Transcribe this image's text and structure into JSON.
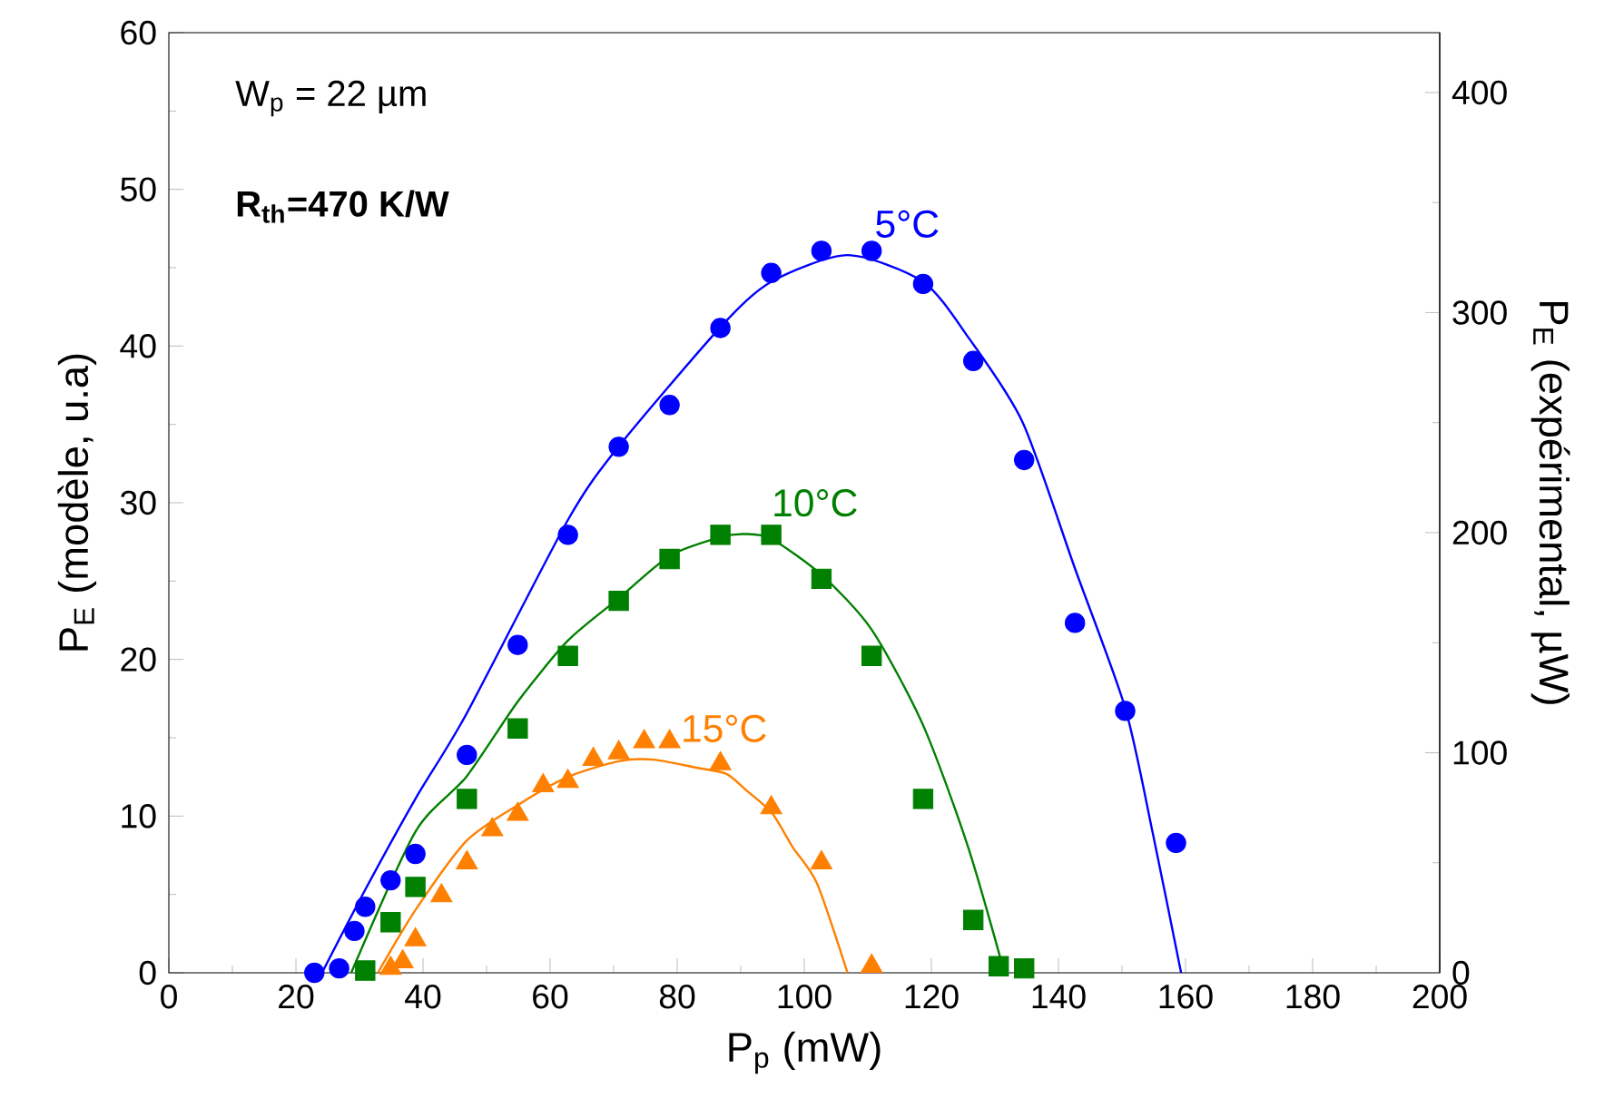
{
  "chart_data": {
    "type": "scatter",
    "xlabel": "P$_{p}$  (mW)",
    "ylabel": "P$_{E}$ (modèle, u.a)",
    "y2label": "P$_{E}$ (expérimental, µW)",
    "annotations": [
      "W$_{p}$ = 22 µm",
      "**R$_{th}$=470 K/W**"
    ],
    "xlim": [
      0,
      200
    ],
    "xticks": [
      0,
      20,
      40,
      60,
      80,
      100,
      120,
      140,
      160,
      180,
      200
    ],
    "ylim": [
      0,
      60
    ],
    "yticks": [
      0,
      10,
      20,
      30,
      40,
      50,
      60
    ],
    "y2lim": [
      0,
      427.2
    ],
    "y2ticks": [
      0,
      100,
      200,
      300,
      400
    ],
    "grid": false,
    "series": [
      {
        "name": "5°C",
        "type": "line",
        "color": "#0000ff",
        "marker": "none",
        "x": [
          24.1,
          30.9,
          38.8,
          46.8,
          62.8,
          70.6,
          86.8,
          94.8,
          106.8,
          118.7,
          125.9,
          134.4,
          142.6,
          150.5,
          154.9,
          159.3
        ],
        "values": [
          0,
          5.3,
          11.1,
          16.5,
          28.9,
          33.5,
          41.2,
          44.1,
          45.8,
          44.1,
          40.5,
          35.1,
          25.8,
          16.9,
          8.8,
          0
        ]
      },
      {
        "name": "10°C",
        "type": "line",
        "color": "#008000",
        "marker": "none",
        "x": [
          28.7,
          38.8,
          46.8,
          54.9,
          62.8,
          70.8,
          78.8,
          86.8,
          90.6,
          94.8,
          102.7,
          110.6,
          118.7,
          125.8,
          131.5
        ],
        "values": [
          0,
          9.0,
          12.5,
          17.3,
          21.2,
          23.9,
          26.6,
          27.8,
          28.0,
          27.7,
          25.4,
          21.9,
          15.8,
          8.0,
          0
        ]
      },
      {
        "name": "15°C",
        "type": "line",
        "color": "#ff8000",
        "marker": "none",
        "x": [
          32.9,
          38.8,
          46.8,
          54.9,
          62.8,
          70.8,
          76.3,
          82.9,
          87.7,
          91.0,
          94.9,
          98.2,
          102.0,
          106.8
        ],
        "values": [
          0,
          4.0,
          8.4,
          10.7,
          12.5,
          13.5,
          13.6,
          13.1,
          12.7,
          11.6,
          10.2,
          8.0,
          5.7,
          0
        ]
      },
      {
        "axis": "y2",
        "color": "#0000ff",
        "marker": "circle",
        "x": [
          22.9,
          26.8,
          29.2,
          30.9,
          34.9,
          38.8,
          46.9,
          54.9,
          62.8,
          70.8,
          78.8,
          86.8,
          94.8,
          102.7,
          110.6,
          118.7,
          126.6,
          134.6,
          142.6,
          150.5,
          158.5
        ],
        "values": [
          0,
          2,
          19,
          30,
          42,
          54,
          99,
          149,
          199,
          239,
          258,
          293,
          318,
          328,
          328,
          313,
          278,
          233,
          159,
          119,
          59
        ]
      },
      {
        "axis": "y2",
        "color": "#008000",
        "marker": "square",
        "x": [
          30.9,
          34.9,
          38.8,
          46.9,
          54.9,
          62.8,
          70.8,
          78.8,
          86.8,
          94.8,
          102.7,
          110.6,
          118.7,
          126.6,
          130.6,
          134.6
        ],
        "values": [
          1,
          23,
          39,
          79,
          111,
          144,
          169,
          188,
          199,
          199,
          179,
          144,
          79,
          24,
          3,
          2
        ]
      },
      {
        "axis": "y2",
        "color": "#ff8000",
        "marker": "triangle",
        "x": [
          34.9,
          36.8,
          38.8,
          42.9,
          46.9,
          50.9,
          54.9,
          58.9,
          62.8,
          66.8,
          70.8,
          74.8,
          78.8,
          86.8,
          94.8,
          102.7,
          110.6
        ],
        "values": [
          2,
          5,
          15,
          35,
          50,
          65,
          72,
          85,
          87,
          97,
          100,
          105,
          105,
          95,
          75,
          50,
          3
        ]
      }
    ]
  }
}
